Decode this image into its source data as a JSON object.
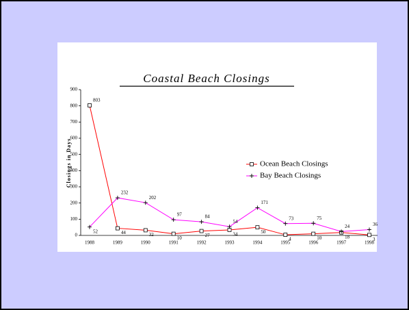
{
  "chart_data": {
    "type": "line",
    "title": "Coastal Beach Closings",
    "ylabel": "Closings in Days",
    "categories": [
      "1988",
      "1989",
      "1990",
      "1991",
      "1992",
      "1993",
      "1994",
      "1995",
      "1996",
      "1997",
      "1998"
    ],
    "series": [
      {
        "name": "Ocean Beach Closings",
        "color": "#ff0000",
        "marker": "square",
        "values": [
          803,
          44,
          32,
          10,
          27,
          34,
          50,
          4,
          10,
          18,
          3
        ]
      },
      {
        "name": "Bay Beach Closings",
        "color": "#ff00ff",
        "marker": "plus",
        "values": [
          52,
          232,
          202,
          97,
          84,
          54,
          171,
          73,
          75,
          24,
          36
        ]
      }
    ],
    "ylim": [
      0,
      900
    ],
    "yticks": [
      0,
      100,
      200,
      300,
      400,
      500,
      600,
      700,
      800,
      900
    ],
    "grid": false,
    "legend": "right"
  }
}
